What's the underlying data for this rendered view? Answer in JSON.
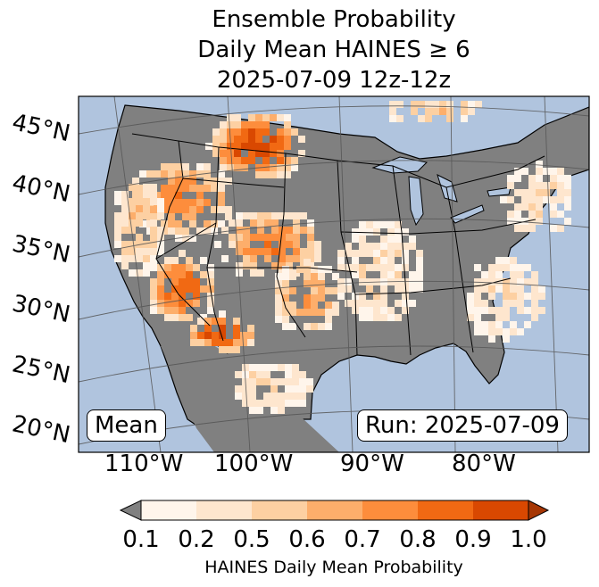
{
  "title": {
    "line1": "Ensemble Probability",
    "line2": "Daily Mean HAINES ≥ 6",
    "line3": "2025-07-09 12z-12z"
  },
  "map": {
    "lat_labels": [
      "45°N",
      "40°N",
      "35°N",
      "30°N",
      "25°N",
      "20°N"
    ],
    "lon_labels": [
      "110°W",
      "100°W",
      "90°W",
      "80°W"
    ],
    "stat_label": "Mean",
    "run_label": "Run: 2025-07-09",
    "ocean_color": "#b0c4de",
    "land_color": "#808080"
  },
  "colorbar": {
    "ticks": [
      "0.1",
      "0.2",
      "0.5",
      "0.6",
      "0.7",
      "0.8",
      "0.9",
      "1.0"
    ],
    "under_color": "#808080",
    "colors": [
      "#fff5eb",
      "#fee6ce",
      "#fdd0a2",
      "#fdae6b",
      "#fd8d3c",
      "#f16913",
      "#d94801"
    ],
    "over_color": "#a63603",
    "label": "HAINES Daily Mean Probability"
  }
}
